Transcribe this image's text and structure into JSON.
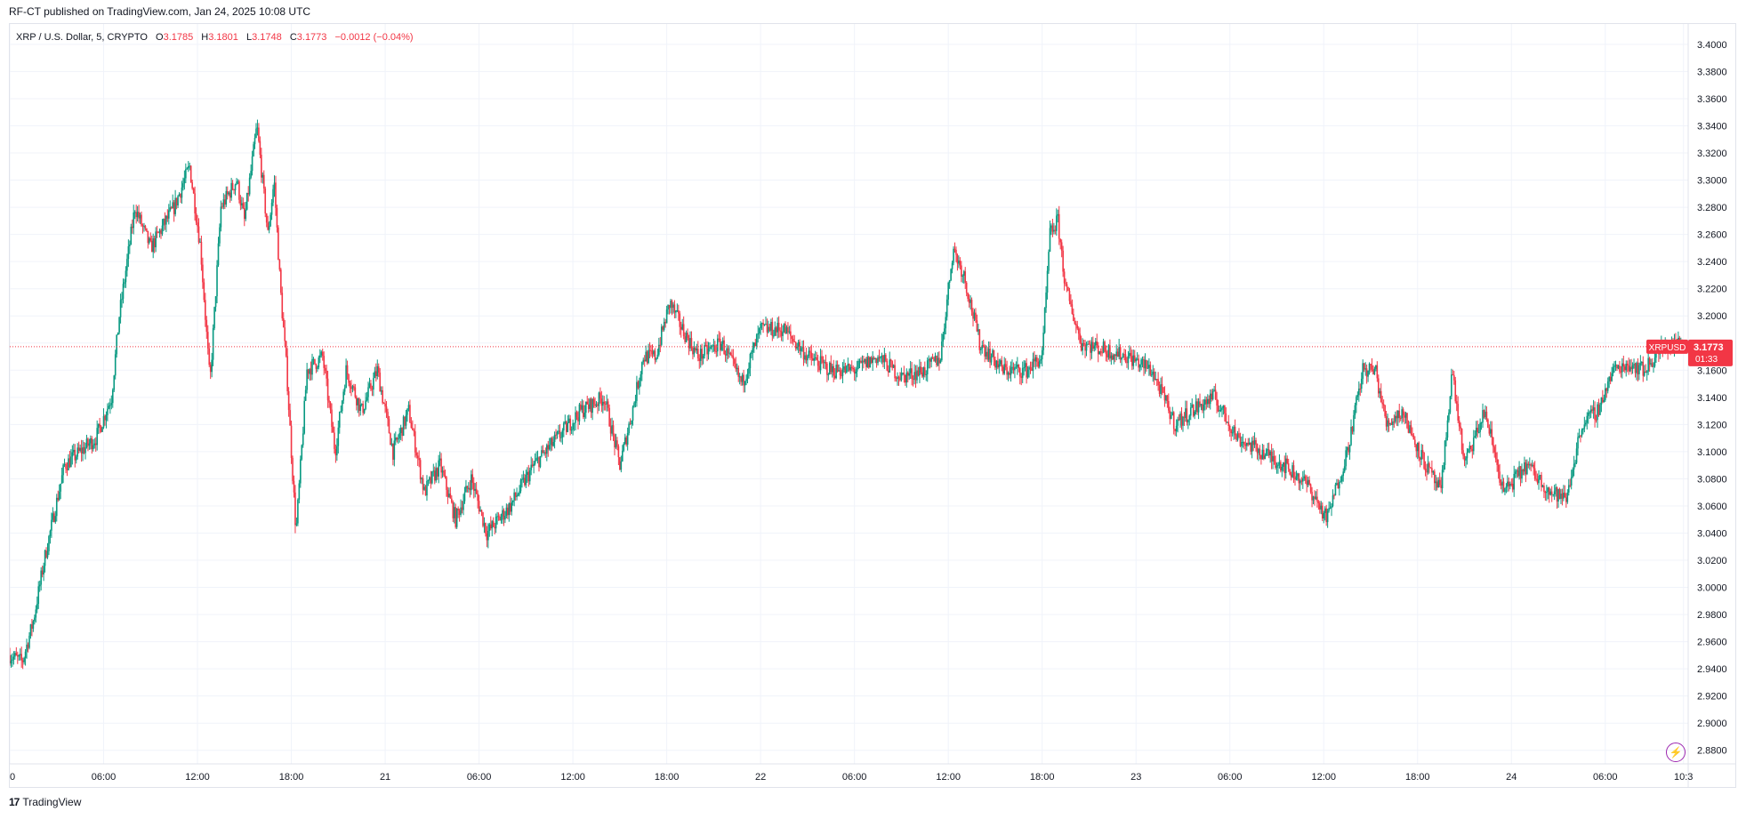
{
  "header": {
    "published_line": "RF-CT published on TradingView.com, Jan 24, 2025 10:08 UTC"
  },
  "legend": {
    "symbol_desc": "XRP / U.S. Dollar, 5, CRYPTO",
    "o_label": "O",
    "o_value": "3.1785",
    "h_label": "H",
    "h_value": "3.1801",
    "l_label": "L",
    "l_value": "3.1748",
    "c_label": "C",
    "c_value": "3.1773",
    "change": "−0.0012 (−0.04%)"
  },
  "price_tag": {
    "symbol": "XRPUSD",
    "price": "3.1773",
    "countdown": "01:33"
  },
  "footer": {
    "brand": "TradingView"
  },
  "colors": {
    "up": "#089981",
    "down": "#f23645",
    "grid": "#f0f3fa",
    "axis_text": "#131722",
    "price_line": "#f23645"
  },
  "icons": {
    "footer_logo": "tradingview-logo-icon",
    "alert": "lightning-bolt-icon"
  },
  "chart_data": {
    "type": "candlestick",
    "interval": "5",
    "ylim": [
      2.87,
      3.415
    ],
    "x_range_hours": [
      0,
      107.3
    ],
    "last_price": 3.1773,
    "grid": true,
    "y_ticks": [
      "3.4000",
      "3.3800",
      "3.3600",
      "3.3400",
      "3.3200",
      "3.3000",
      "3.2800",
      "3.2600",
      "3.2400",
      "3.2200",
      "3.2000",
      "3.1800",
      "3.1600",
      "3.1400",
      "3.1200",
      "3.1000",
      "3.0800",
      "3.0600",
      "3.0400",
      "3.0200",
      "3.0000",
      "2.9800",
      "2.9600",
      "2.9400",
      "2.9200",
      "2.9000",
      "2.8800"
    ],
    "x_ticks": [
      {
        "label": "0",
        "h": 0
      },
      {
        "label": "06:00",
        "h": 6
      },
      {
        "label": "12:00",
        "h": 12
      },
      {
        "label": "18:00",
        "h": 18
      },
      {
        "label": "21",
        "h": 24
      },
      {
        "label": "06:00",
        "h": 30
      },
      {
        "label": "12:00",
        "h": 36
      },
      {
        "label": "18:00",
        "h": 42
      },
      {
        "label": "22",
        "h": 48
      },
      {
        "label": "06:00",
        "h": 54
      },
      {
        "label": "12:00",
        "h": 60
      },
      {
        "label": "18:00",
        "h": 66
      },
      {
        "label": "23",
        "h": 72
      },
      {
        "label": "06:00",
        "h": 78
      },
      {
        "label": "12:00",
        "h": 84
      },
      {
        "label": "18:00",
        "h": 90
      },
      {
        "label": "24",
        "h": 96
      },
      {
        "label": "06:00",
        "h": 102
      },
      {
        "label": "10:3",
        "h": 107
      }
    ],
    "path_hours": [
      0,
      0.8,
      1.5,
      2.2,
      3.5,
      5.5,
      6.5,
      7.0,
      8.0,
      9.0,
      10.5,
      11.5,
      12.2,
      12.8,
      13.5,
      14.5,
      15.0,
      15.8,
      16.5,
      16.9,
      17.3,
      17.7,
      18.3,
      19.0,
      20.0,
      20.8,
      21.5,
      22.5,
      23.5,
      24.5,
      25.5,
      26.5,
      27.5,
      28.5,
      29.5,
      30.5,
      32.0,
      33.5,
      35.0,
      36.5,
      38.0,
      39.0,
      39.8,
      40.5,
      41.3,
      42.2,
      43.0,
      44.0,
      45.5,
      46.8,
      48.0,
      49.5,
      51.0,
      52.5,
      54.0,
      55.5,
      57.0,
      58.5,
      59.5,
      60.3,
      61.0,
      62.0,
      63.5,
      65.0,
      66.0,
      66.5,
      67.0,
      67.5,
      68.5,
      70.0,
      71.5,
      73.0,
      74.5,
      75.5,
      77.0,
      78.5,
      80.0,
      81.5,
      83.0,
      84.2,
      85.5,
      86.5,
      87.3,
      88.0,
      89.0,
      90.5,
      91.5,
      92.2,
      93.0,
      94.3,
      95.5,
      97.0,
      98.5,
      99.5,
      100.5,
      101.5,
      102.5,
      103.5,
      104.5,
      105.5,
      106.5,
      107.0
    ],
    "path_prices": [
      2.95,
      2.945,
      2.975,
      3.02,
      3.09,
      3.11,
      3.14,
      3.2,
      3.28,
      3.25,
      3.28,
      3.31,
      3.25,
      3.15,
      3.28,
      3.3,
      3.27,
      3.34,
      3.26,
      3.3,
      3.22,
      3.16,
      3.04,
      3.16,
      3.17,
      3.1,
      3.16,
      3.13,
      3.16,
      3.1,
      3.13,
      3.07,
      3.09,
      3.05,
      3.08,
      3.04,
      3.06,
      3.09,
      3.11,
      3.13,
      3.14,
      3.09,
      3.13,
      3.17,
      3.17,
      3.21,
      3.19,
      3.17,
      3.18,
      3.15,
      3.19,
      3.19,
      3.17,
      3.16,
      3.16,
      3.17,
      3.155,
      3.16,
      3.17,
      3.25,
      3.23,
      3.18,
      3.16,
      3.16,
      3.17,
      3.26,
      3.27,
      3.22,
      3.18,
      3.175,
      3.17,
      3.16,
      3.12,
      3.13,
      3.14,
      3.11,
      3.1,
      3.09,
      3.075,
      3.05,
      3.1,
      3.16,
      3.16,
      3.12,
      3.13,
      3.09,
      3.07,
      3.16,
      3.09,
      3.13,
      3.07,
      3.09,
      3.07,
      3.065,
      3.12,
      3.13,
      3.16,
      3.165,
      3.16,
      3.175,
      3.18,
      3.1773
    ]
  }
}
